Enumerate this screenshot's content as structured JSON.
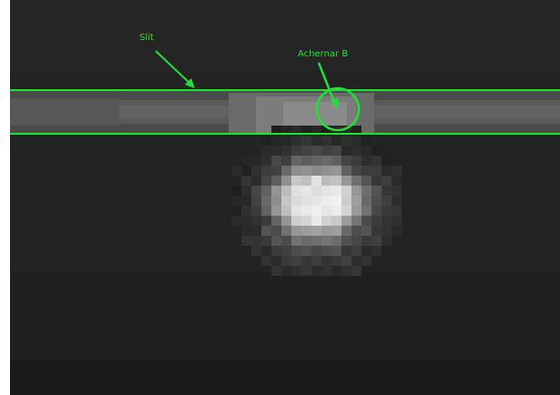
{
  "image": {
    "description_of_scene": "",
    "annotation_color": "#22e03a",
    "background_color": "#232323"
  },
  "annotations": {
    "slit_label": "Slit",
    "target_label": "Achernar B"
  },
  "icons": {
    "slit_arrow": "arrow-icon",
    "target_arrow": "arrow-icon",
    "target_marker": "circle-icon"
  }
}
